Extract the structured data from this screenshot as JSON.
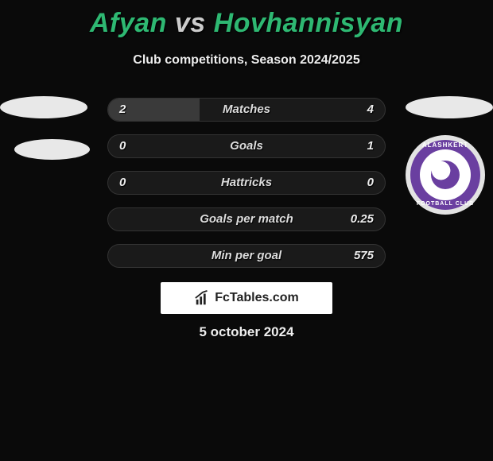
{
  "title": {
    "player1": "Afyan",
    "vs": "vs",
    "player2": "Hovhannisyan",
    "color_player": "#2eb872",
    "color_vs": "#cccccc",
    "fontsize": 34
  },
  "subtitle": "Club competitions, Season 2024/2025",
  "club_badge": {
    "name_top": "ALASHKERT",
    "name_bottom": "FOOTBALL CLUB",
    "ring_color": "#6a3fa0",
    "outer_color": "#e3e3e3",
    "inner_color": "#ffffff"
  },
  "bars": {
    "track_bg": "#1a1a1a",
    "fill_color": "#3a3a3a",
    "border_color": "#333333",
    "height": 30,
    "radius": 15,
    "label_fontsize": 15,
    "rows": [
      {
        "label": "Matches",
        "left_val": "2",
        "right_val": "4",
        "left_pct": 33,
        "right_pct": 0
      },
      {
        "label": "Goals",
        "left_val": "0",
        "right_val": "1",
        "left_pct": 0,
        "right_pct": 0
      },
      {
        "label": "Hattricks",
        "left_val": "0",
        "right_val": "0",
        "left_pct": 0,
        "right_pct": 0
      },
      {
        "label": "Goals per match",
        "left_val": "",
        "right_val": "0.25",
        "left_pct": 0,
        "right_pct": 0
      },
      {
        "label": "Min per goal",
        "left_val": "",
        "right_val": "575",
        "left_pct": 0,
        "right_pct": 0
      }
    ]
  },
  "brand": "FcTables.com",
  "date": "5 october 2024",
  "colors": {
    "background": "#0a0a0a",
    "text": "#eeeeee",
    "avatar_ellipse": "#e8e8e8"
  }
}
